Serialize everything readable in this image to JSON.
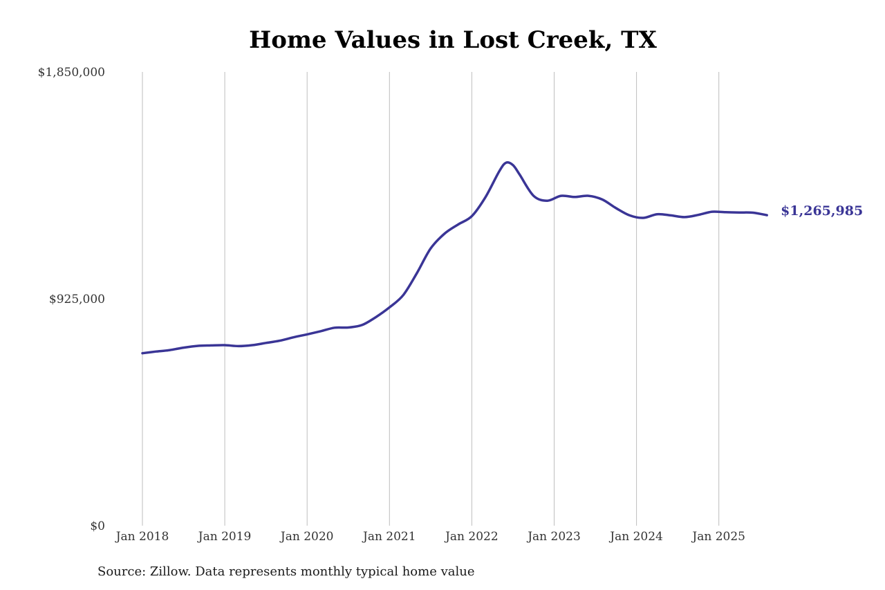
{
  "chart_data": {
    "type": "line",
    "title": "Home Values in Lost Creek, TX",
    "source": "Source: Zillow. Data represents monthly typical home value",
    "xlabel": "",
    "ylabel": "",
    "x_ticks": [
      "Jan 2018",
      "Jan 2019",
      "Jan 2020",
      "Jan 2021",
      "Jan 2022",
      "Jan 2023",
      "Jan 2024",
      "Jan 2025"
    ],
    "y_ticks": [
      "$0",
      "$925,000",
      "$1,850,000"
    ],
    "ylim": [
      0,
      1850000
    ],
    "xlim": [
      "2018-01",
      "2025-08"
    ],
    "grid": "vertical",
    "line_color": "#3a3596",
    "end_label": "$1,265,985",
    "series": [
      {
        "points": [
          [
            "2018-01",
            703000
          ],
          [
            "2018-03",
            710000
          ],
          [
            "2018-05",
            716000
          ],
          [
            "2018-07",
            726000
          ],
          [
            "2018-09",
            733000
          ],
          [
            "2018-11",
            735000
          ],
          [
            "2019-01",
            736000
          ],
          [
            "2019-03",
            732000
          ],
          [
            "2019-05",
            736000
          ],
          [
            "2019-07",
            745000
          ],
          [
            "2019-09",
            754000
          ],
          [
            "2019-11",
            768000
          ],
          [
            "2020-01",
            780000
          ],
          [
            "2020-03",
            793000
          ],
          [
            "2020-05",
            807000
          ],
          [
            "2020-07",
            808000
          ],
          [
            "2020-09",
            818000
          ],
          [
            "2020-11",
            850000
          ],
          [
            "2021-01",
            890000
          ],
          [
            "2021-03",
            940000
          ],
          [
            "2021-05",
            1030000
          ],
          [
            "2021-07",
            1130000
          ],
          [
            "2021-09",
            1190000
          ],
          [
            "2021-11",
            1228000
          ],
          [
            "2022-01",
            1262000
          ],
          [
            "2022-03",
            1340000
          ],
          [
            "2022-05",
            1445000
          ],
          [
            "2022-06",
            1480000
          ],
          [
            "2022-07",
            1470000
          ],
          [
            "2022-08",
            1430000
          ],
          [
            "2022-10",
            1345000
          ],
          [
            "2022-12",
            1325000
          ],
          [
            "2023-02",
            1345000
          ],
          [
            "2023-04",
            1340000
          ],
          [
            "2023-06",
            1345000
          ],
          [
            "2023-08",
            1330000
          ],
          [
            "2023-10",
            1295000
          ],
          [
            "2023-12",
            1265000
          ],
          [
            "2024-02",
            1255000
          ],
          [
            "2024-04",
            1270000
          ],
          [
            "2024-06",
            1265000
          ],
          [
            "2024-08",
            1258000
          ],
          [
            "2024-10",
            1267000
          ],
          [
            "2024-12",
            1280000
          ],
          [
            "2025-02",
            1278000
          ],
          [
            "2025-04",
            1277000
          ],
          [
            "2025-06",
            1276000
          ],
          [
            "2025-08",
            1265985
          ]
        ]
      }
    ]
  }
}
